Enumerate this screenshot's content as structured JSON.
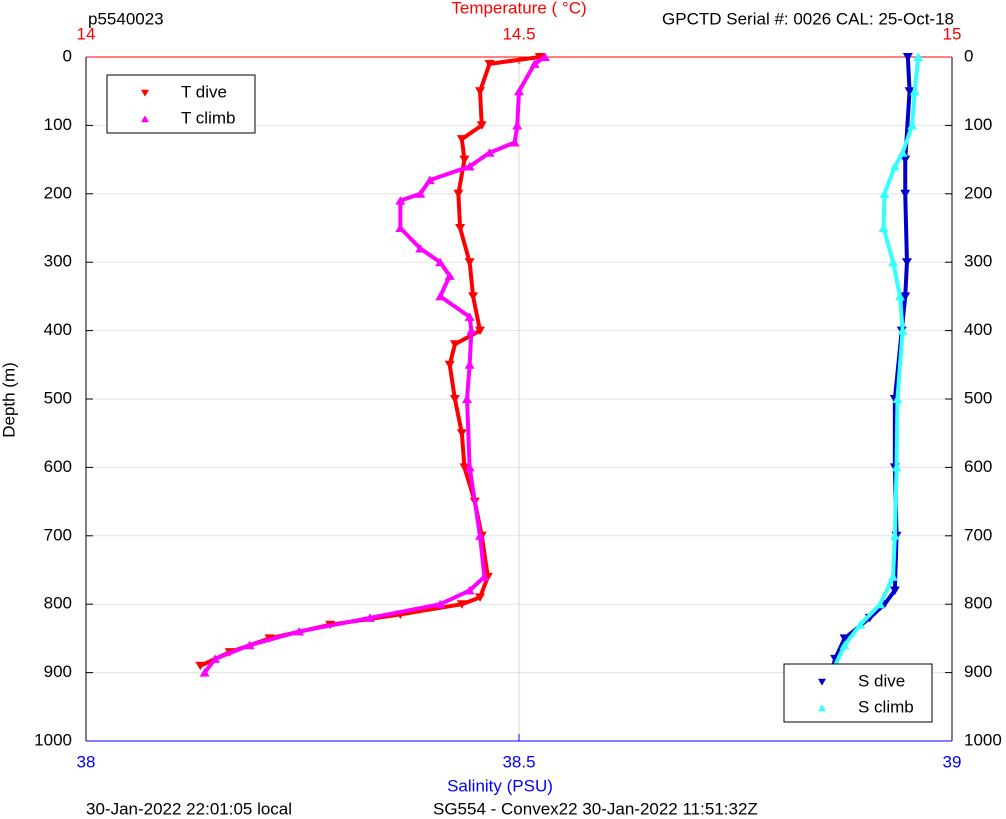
{
  "chart_data": {
    "type": "line",
    "title": "p5540023",
    "subtitle": "GPCTD Serial #: 0026 CAL: 25-Oct-18",
    "x2_label": "Temperature (    °C)",
    "x_label": "Salinity (PSU)",
    "y_label": "Depth (m)",
    "footer_left": "30-Jan-2022 22:01:05 local",
    "footer_right": "SG554 - Convex22 30-Jan-2022 11:51:32Z",
    "ylim": [
      0,
      1000
    ],
    "y_inverted": true,
    "yticks": [
      0,
      100,
      200,
      300,
      400,
      500,
      600,
      700,
      800,
      900,
      1000
    ],
    "xlim": [
      38,
      39
    ],
    "xticks": [
      38,
      38.5,
      39
    ],
    "x_color": "#0000ff",
    "x2lim": [
      14,
      15
    ],
    "x2ticks": [
      14,
      14.5,
      15
    ],
    "x2_color": "#ff0000",
    "grid": true,
    "legend_corners": {
      "x2": "upper-left",
      "x": "lower-right"
    },
    "series": [
      {
        "name": "T dive",
        "color": "#ff0000",
        "axis": "x2",
        "marker": "down",
        "x": [
          14.524,
          14.466,
          14.455,
          14.457,
          14.434,
          14.437,
          14.43,
          14.432,
          14.443,
          14.447,
          14.455,
          14.426,
          14.42,
          14.426,
          14.434,
          14.437,
          14.449,
          14.457,
          14.464,
          14.455,
          14.434,
          14.363,
          14.282,
          14.212,
          14.166,
          14.132
        ],
        "values": [
          0,
          10,
          50,
          100,
          120,
          150,
          200,
          250,
          300,
          350,
          400,
          420,
          450,
          500,
          550,
          600,
          650,
          700,
          760,
          790,
          800,
          815,
          830,
          850,
          870,
          890
        ]
      },
      {
        "name": "T climb",
        "color": "#ff00ff",
        "axis": "x2",
        "marker": "up",
        "x": [
          14.53,
          14.518,
          14.5,
          14.498,
          14.495,
          14.466,
          14.443,
          14.397,
          14.386,
          14.363,
          14.363,
          14.386,
          14.409,
          14.42,
          14.409,
          14.443,
          14.445,
          14.443,
          14.44,
          14.443,
          14.455,
          14.46,
          14.443,
          14.409,
          14.328,
          14.246,
          14.189,
          14.149,
          14.137
        ],
        "values": [
          0,
          10,
          50,
          100,
          125,
          140,
          160,
          180,
          200,
          210,
          250,
          280,
          300,
          320,
          350,
          380,
          400,
          450,
          500,
          600,
          700,
          760,
          780,
          800,
          820,
          840,
          860,
          880,
          900
        ]
      },
      {
        "name": "S dive",
        "color": "#0000cc",
        "axis": "x",
        "marker": "down",
        "x": [
          38.949,
          38.951,
          38.946,
          38.946,
          38.948,
          38.946,
          38.942,
          38.934,
          38.934,
          38.936,
          38.934,
          38.922,
          38.905,
          38.876,
          38.865,
          38.861
        ],
        "values": [
          0,
          50,
          150,
          200,
          300,
          350,
          400,
          500,
          600,
          700,
          780,
          800,
          820,
          850,
          880,
          900
        ]
      },
      {
        "name": "S climb",
        "color": "#33ffff",
        "axis": "x",
        "marker": "up",
        "x": [
          38.961,
          38.957,
          38.954,
          38.943,
          38.934,
          38.922,
          38.921,
          38.932,
          38.94,
          38.943,
          38.937,
          38.936,
          38.934,
          38.932,
          38.917,
          38.894,
          38.876,
          38.861
        ],
        "values": [
          0,
          50,
          100,
          140,
          160,
          200,
          250,
          300,
          350,
          400,
          500,
          600,
          700,
          760,
          800,
          830,
          860,
          900
        ]
      }
    ]
  }
}
